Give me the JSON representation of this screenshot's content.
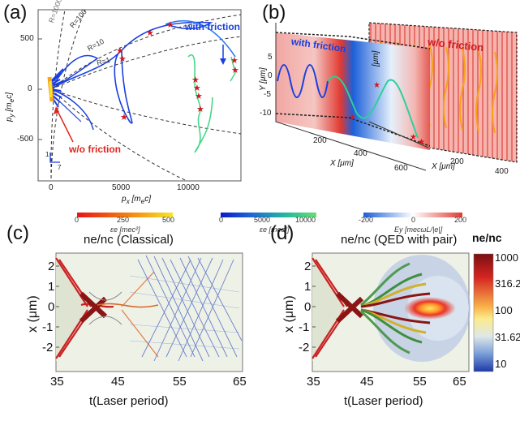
{
  "panel_a": {
    "label": "(a)",
    "x_axis_label": "p",
    "x_axis_sub": "x",
    "x_axis_unit": "[m",
    "x_axis_unit_sub": "e",
    "x_axis_unit_end": "c]",
    "y_axis_label": "p",
    "y_axis_sub": "y",
    "y_axis_unit": "[m",
    "y_axis_unit_sub": "e",
    "y_axis_unit_end": "c]",
    "y_ticks": [
      "500",
      "0",
      "-500"
    ],
    "x_ticks": [
      "0",
      "5000",
      "10000"
    ],
    "curve_labels": [
      "R=1000",
      "R=100",
      "R=10",
      "R=1"
    ],
    "annotation_with": "with friction",
    "annotation_without": "w/o friction",
    "scale_marks": [
      "1",
      "7"
    ]
  },
  "panel_b": {
    "label": "(b)",
    "y_axis_label": "Y",
    "y_unit": "[μm]",
    "y_ticks": [
      "5",
      "0",
      "-5",
      "-10"
    ],
    "x_axis_label": "X",
    "x_unit": "[μm]",
    "x_ticks_left": [
      "200",
      "400",
      "600"
    ],
    "x_ticks_right": [
      "200",
      "400"
    ],
    "annotation_with": "with friction",
    "annotation_without": "w/o friction"
  },
  "colorbars": [
    {
      "ticks": [
        "0",
        "250",
        "500"
      ],
      "label": "εe [mec²]",
      "colors": [
        "#e8141b",
        "#f27a10",
        "#f6e62a"
      ]
    },
    {
      "ticks": [
        "0",
        "5000",
        "10000"
      ],
      "label": "εe [mec²]",
      "colors": [
        "#0a1bc9",
        "#1e6ad6",
        "#22b6a0",
        "#69de73"
      ]
    },
    {
      "ticks": [
        "-200",
        "0",
        "200"
      ],
      "label": "Ey [mecωL/|e|]",
      "colors": [
        "#1b5fd9",
        "#ffffff",
        "#e03a32"
      ]
    }
  ],
  "panel_c": {
    "label": "(c)",
    "title": "ne/nc (Classical)",
    "y_axis_label": "x (μm)",
    "y_ticks": [
      "2",
      "1",
      "0",
      "-1",
      "-2"
    ],
    "x_ticks": [
      "35",
      "45",
      "55",
      "65"
    ],
    "x_axis_label": "t(Laser period)"
  },
  "panel_d": {
    "label": "(d)",
    "title": "ne/nc (QED with pair)",
    "y_axis_label": "x (μm)",
    "y_ticks": [
      "2",
      "1",
      "0",
      "-1",
      "-2"
    ],
    "x_ticks": [
      "35",
      "45",
      "55",
      "65"
    ],
    "x_axis_label": "t(Laser period)",
    "colorbar_title": "ne/nc",
    "colorbar_ticks": [
      "1000",
      "316.2",
      "100",
      "31.62",
      "10"
    ]
  },
  "colors": {
    "friction_blue": "#1a3fe0",
    "no_friction_red": "#e0231b",
    "track_green": "#46d889",
    "star_red": "#d0181e",
    "field_red": "#ef8a86",
    "plasma_blue": "#4a63c8"
  }
}
